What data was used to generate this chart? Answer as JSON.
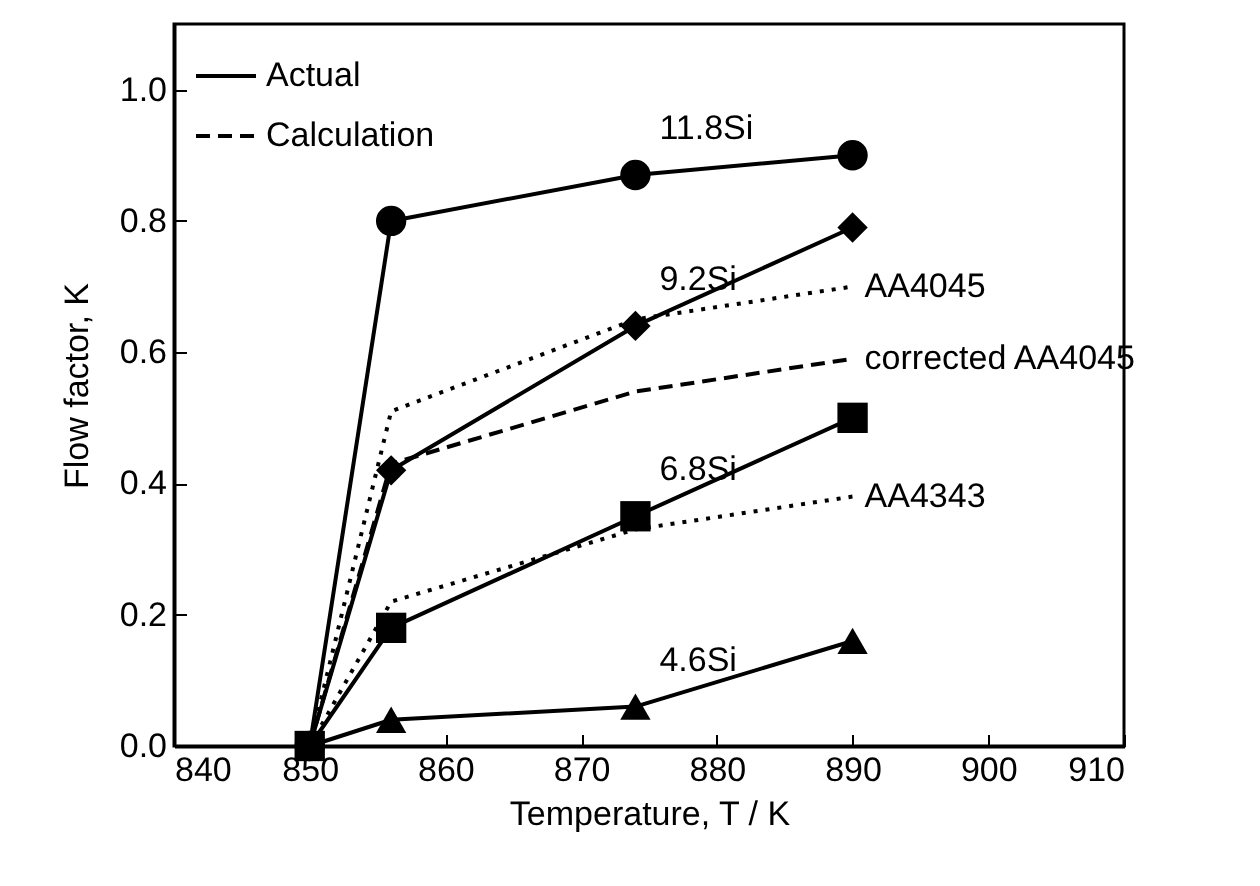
{
  "chart_data": {
    "type": "line",
    "xlabel": "Temperature, T / K",
    "ylabel": "Flow factor, K",
    "xlim": [
      840,
      910
    ],
    "xticks": [
      840,
      850,
      860,
      870,
      880,
      890,
      900,
      910
    ],
    "ylim": [
      0,
      1.1
    ],
    "yticks": [
      {
        "value": 0,
        "label": "0.0"
      },
      {
        "value": 0.2,
        "label": "0.2"
      },
      {
        "value": 0.4,
        "label": "0.4"
      },
      {
        "value": 0.6,
        "label": "0.6"
      },
      {
        "value": 0.8,
        "label": "0.8"
      },
      {
        "value": 1.0,
        "label": "1.0"
      }
    ],
    "x": [
      850,
      856,
      874,
      890
    ],
    "grid": false,
    "annotations": [
      "Actual",
      "Calculation"
    ],
    "series": [
      {
        "name": "11.8Si",
        "color": "#000000",
        "marker": "circle",
        "line_style": "solid",
        "values": [
          0,
          0.8,
          0.87,
          0.9
        ]
      },
      {
        "name": "9.2Si",
        "color": "#000000",
        "marker": "diamond",
        "line_style": "solid",
        "values": [
          0,
          0.42,
          0.64,
          0.79
        ]
      },
      {
        "name": "6.8Si",
        "color": "#000000",
        "marker": "square",
        "line_style": "solid",
        "values": [
          0,
          0.18,
          0.35,
          0.5
        ]
      },
      {
        "name": "4.6Si",
        "color": "#000000",
        "marker": "triangle",
        "line_style": "solid",
        "values": [
          0,
          0.04,
          0.06,
          0.16
        ]
      },
      {
        "name": "AA4045",
        "color": "#000000",
        "marker": "none",
        "line_style": "dotted",
        "values": [
          0,
          0.51,
          0.65,
          0.7
        ]
      },
      {
        "name": "corrected AA4045",
        "color": "#000000",
        "marker": "none",
        "line_style": "dashed",
        "values": [
          0,
          0.43,
          0.54,
          0.59
        ]
      },
      {
        "name": "AA4343",
        "color": "#000000",
        "marker": "none",
        "line_style": "dotted",
        "values": [
          0,
          0.22,
          0.33,
          0.38
        ]
      }
    ]
  }
}
